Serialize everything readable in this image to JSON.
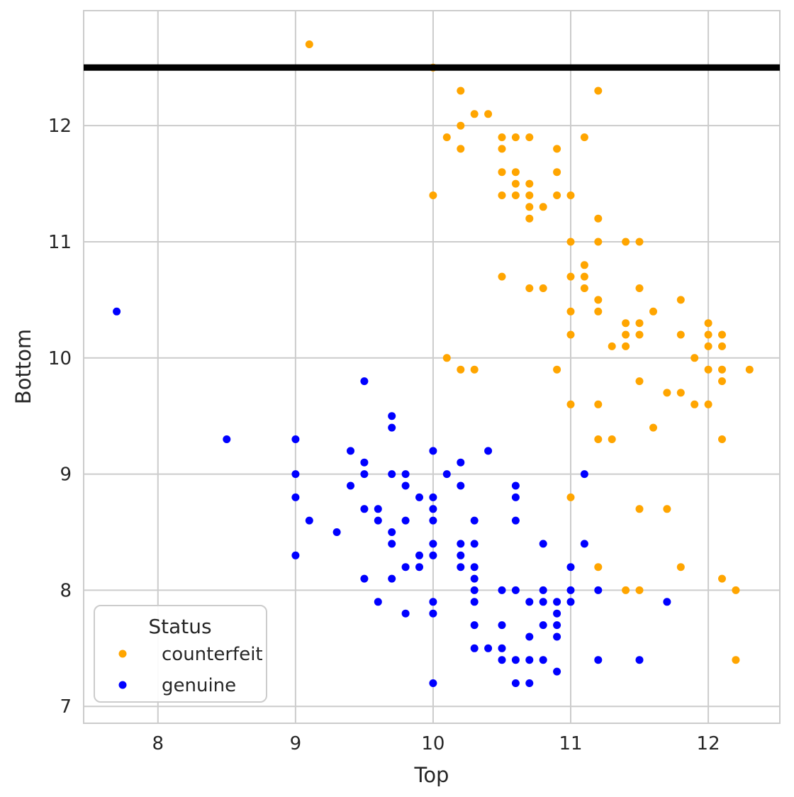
{
  "chart_data": {
    "type": "scatter",
    "title": "",
    "xlabel": "Top",
    "ylabel": "Bottom",
    "xlabel_color": "#262626",
    "ylabel_color": "#ff0000",
    "tick_color": "#262626",
    "grid": true,
    "grid_color": "#cccccc",
    "background": "#ffffff",
    "xlim": [
      7.46,
      12.52
    ],
    "ylim": [
      6.855,
      12.99
    ],
    "x_ticks": [
      8,
      9,
      10,
      11,
      12
    ],
    "y_ticks": [
      7,
      8,
      9,
      10,
      11,
      12
    ],
    "marker_radius": 5.5,
    "reference_line": {
      "y": 12.5,
      "color": "#000000",
      "stroke_width": 9
    },
    "legend": {
      "title": "Status",
      "position": "lower-left",
      "entries": [
        {
          "label": "counterfeit",
          "color": "#FFA500"
        },
        {
          "label": "genuine",
          "color": "#0000FF"
        }
      ]
    },
    "series": [
      {
        "name": "counterfeit",
        "color": "#FFA500",
        "points": [
          [
            9.1,
            12.7
          ],
          [
            10.0,
            12.5
          ],
          [
            10.2,
            12.3
          ],
          [
            11.2,
            12.3
          ],
          [
            10.3,
            12.1
          ],
          [
            10.4,
            12.1
          ],
          [
            10.2,
            12.0
          ],
          [
            10.1,
            11.9
          ],
          [
            10.5,
            11.9
          ],
          [
            10.6,
            11.9
          ],
          [
            10.7,
            11.9
          ],
          [
            11.1,
            11.9
          ],
          [
            10.2,
            11.8
          ],
          [
            10.5,
            11.8
          ],
          [
            10.9,
            11.8
          ],
          [
            10.5,
            11.6
          ],
          [
            10.6,
            11.6
          ],
          [
            10.9,
            11.6
          ],
          [
            10.6,
            11.5
          ],
          [
            10.7,
            11.5
          ],
          [
            10.0,
            11.4
          ],
          [
            10.5,
            11.4
          ],
          [
            10.6,
            11.4
          ],
          [
            10.7,
            11.4
          ],
          [
            10.9,
            11.4
          ],
          [
            11.0,
            11.4
          ],
          [
            10.7,
            11.3
          ],
          [
            10.8,
            11.3
          ],
          [
            10.7,
            11.2
          ],
          [
            11.2,
            11.2
          ],
          [
            11.0,
            11.0
          ],
          [
            11.2,
            11.0
          ],
          [
            11.4,
            11.0
          ],
          [
            11.5,
            11.0
          ],
          [
            11.1,
            10.8
          ],
          [
            10.5,
            10.7
          ],
          [
            11.0,
            10.7
          ],
          [
            11.1,
            10.7
          ],
          [
            10.7,
            10.6
          ],
          [
            10.8,
            10.6
          ],
          [
            11.1,
            10.6
          ],
          [
            11.5,
            10.6
          ],
          [
            11.2,
            10.5
          ],
          [
            11.8,
            10.5
          ],
          [
            11.0,
            10.4
          ],
          [
            11.2,
            10.4
          ],
          [
            11.6,
            10.4
          ],
          [
            11.4,
            10.3
          ],
          [
            11.5,
            10.3
          ],
          [
            12.0,
            10.3
          ],
          [
            11.0,
            10.2
          ],
          [
            11.4,
            10.2
          ],
          [
            11.5,
            10.2
          ],
          [
            11.8,
            10.2
          ],
          [
            12.0,
            10.2
          ],
          [
            12.1,
            10.2
          ],
          [
            11.3,
            10.1
          ],
          [
            11.4,
            10.1
          ],
          [
            12.0,
            10.1
          ],
          [
            12.1,
            10.1
          ],
          [
            10.1,
            10.0
          ],
          [
            11.9,
            10.0
          ],
          [
            10.2,
            9.9
          ],
          [
            10.3,
            9.9
          ],
          [
            10.9,
            9.9
          ],
          [
            12.0,
            9.9
          ],
          [
            12.1,
            9.9
          ],
          [
            12.3,
            9.9
          ],
          [
            11.5,
            9.8
          ],
          [
            12.1,
            9.8
          ],
          [
            11.7,
            9.7
          ],
          [
            11.8,
            9.7
          ],
          [
            11.0,
            9.6
          ],
          [
            11.2,
            9.6
          ],
          [
            11.9,
            9.6
          ],
          [
            12.0,
            9.6
          ],
          [
            11.6,
            9.4
          ],
          [
            11.2,
            9.3
          ],
          [
            11.3,
            9.3
          ],
          [
            12.1,
            9.3
          ],
          [
            11.0,
            8.8
          ],
          [
            11.5,
            8.7
          ],
          [
            11.7,
            8.7
          ],
          [
            11.2,
            8.2
          ],
          [
            11.8,
            8.2
          ],
          [
            12.1,
            8.1
          ],
          [
            11.4,
            8.0
          ],
          [
            11.5,
            8.0
          ],
          [
            12.2,
            8.0
          ],
          [
            12.2,
            7.4
          ]
        ]
      },
      {
        "name": "genuine",
        "color": "#0000FF",
        "points": [
          [
            7.7,
            10.4
          ],
          [
            9.5,
            9.8
          ],
          [
            9.7,
            9.5
          ],
          [
            9.7,
            9.4
          ],
          [
            8.5,
            9.3
          ],
          [
            9.0,
            9.3
          ],
          [
            9.4,
            9.2
          ],
          [
            10.0,
            9.2
          ],
          [
            10.4,
            9.2
          ],
          [
            9.5,
            9.1
          ],
          [
            10.2,
            9.1
          ],
          [
            9.0,
            9.0
          ],
          [
            9.5,
            9.0
          ],
          [
            9.7,
            9.0
          ],
          [
            9.8,
            9.0
          ],
          [
            10.1,
            9.0
          ],
          [
            11.1,
            9.0
          ],
          [
            9.4,
            8.9
          ],
          [
            9.8,
            8.9
          ],
          [
            10.2,
            8.9
          ],
          [
            10.6,
            8.9
          ],
          [
            9.0,
            8.8
          ],
          [
            9.9,
            8.8
          ],
          [
            10.0,
            8.8
          ],
          [
            10.6,
            8.8
          ],
          [
            9.5,
            8.7
          ],
          [
            9.6,
            8.7
          ],
          [
            10.0,
            8.7
          ],
          [
            9.1,
            8.6
          ],
          [
            9.6,
            8.6
          ],
          [
            9.8,
            8.6
          ],
          [
            10.0,
            8.6
          ],
          [
            10.3,
            8.6
          ],
          [
            10.6,
            8.6
          ],
          [
            9.3,
            8.5
          ],
          [
            9.7,
            8.5
          ],
          [
            9.7,
            8.4
          ],
          [
            10.0,
            8.4
          ],
          [
            10.2,
            8.4
          ],
          [
            10.3,
            8.4
          ],
          [
            10.8,
            8.4
          ],
          [
            11.1,
            8.4
          ],
          [
            9.0,
            8.3
          ],
          [
            9.9,
            8.3
          ],
          [
            10.0,
            8.3
          ],
          [
            10.2,
            8.3
          ],
          [
            9.8,
            8.2
          ],
          [
            9.9,
            8.2
          ],
          [
            10.2,
            8.2
          ],
          [
            10.3,
            8.2
          ],
          [
            11.0,
            8.2
          ],
          [
            9.5,
            8.1
          ],
          [
            9.7,
            8.1
          ],
          [
            10.3,
            8.1
          ],
          [
            10.3,
            8.0
          ],
          [
            10.5,
            8.0
          ],
          [
            10.6,
            8.0
          ],
          [
            10.8,
            8.0
          ],
          [
            11.0,
            8.0
          ],
          [
            11.2,
            8.0
          ],
          [
            9.6,
            7.9
          ],
          [
            10.0,
            7.9
          ],
          [
            10.3,
            7.9
          ],
          [
            10.7,
            7.9
          ],
          [
            10.8,
            7.9
          ],
          [
            10.9,
            7.9
          ],
          [
            11.0,
            7.9
          ],
          [
            11.7,
            7.9
          ],
          [
            9.8,
            7.8
          ],
          [
            10.0,
            7.8
          ],
          [
            10.9,
            7.8
          ],
          [
            10.3,
            7.7
          ],
          [
            10.5,
            7.7
          ],
          [
            10.8,
            7.7
          ],
          [
            10.9,
            7.7
          ],
          [
            10.7,
            7.6
          ],
          [
            10.9,
            7.6
          ],
          [
            10.3,
            7.5
          ],
          [
            10.4,
            7.5
          ],
          [
            10.5,
            7.5
          ],
          [
            10.5,
            7.4
          ],
          [
            10.6,
            7.4
          ],
          [
            10.7,
            7.4
          ],
          [
            10.8,
            7.4
          ],
          [
            11.2,
            7.4
          ],
          [
            11.5,
            7.4
          ],
          [
            10.9,
            7.3
          ],
          [
            10.0,
            7.2
          ],
          [
            10.6,
            7.2
          ],
          [
            10.7,
            7.2
          ]
        ]
      }
    ]
  }
}
